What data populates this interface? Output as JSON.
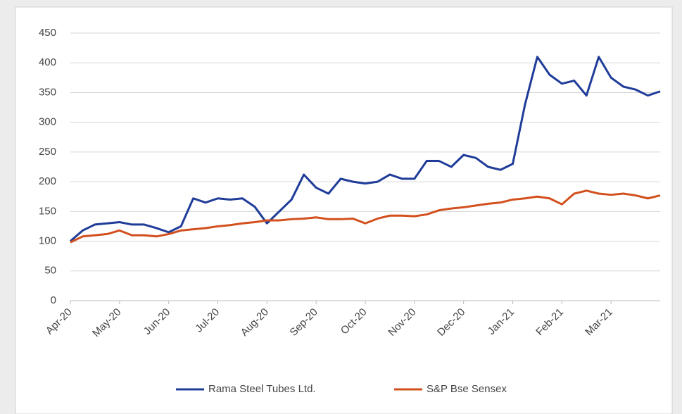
{
  "chart_data": {
    "type": "line",
    "categories": [
      "Apr-20",
      null,
      null,
      null,
      "May-20",
      null,
      null,
      null,
      "Jun-20",
      null,
      null,
      null,
      "Jul-20",
      null,
      null,
      null,
      "Aug-20",
      null,
      null,
      null,
      "Sep-20",
      null,
      null,
      null,
      "Oct-20",
      null,
      null,
      null,
      "Nov-20",
      null,
      null,
      null,
      "Dec-20",
      null,
      null,
      null,
      "Jan-21",
      null,
      null,
      null,
      "Feb-21",
      null,
      null,
      null,
      "Mar-21",
      null,
      null,
      null,
      null
    ],
    "series": [
      {
        "name": "Rama Steel Tubes Ltd.",
        "color": "#1f3c99",
        "values": [
          100,
          118,
          128,
          130,
          132,
          128,
          128,
          122,
          115,
          125,
          172,
          165,
          172,
          170,
          172,
          158,
          130,
          150,
          170,
          212,
          190,
          180,
          205,
          200,
          197,
          200,
          212,
          205,
          205,
          235,
          235,
          225,
          245,
          240,
          225,
          220,
          230,
          330,
          410,
          380,
          365,
          370,
          345,
          410,
          375,
          360,
          355,
          345,
          352
        ]
      },
      {
        "name": "S&P Bse Sensex",
        "color": "#d2501e",
        "values": [
          98,
          108,
          110,
          112,
          118,
          110,
          110,
          108,
          112,
          118,
          120,
          122,
          125,
          127,
          130,
          132,
          135,
          135,
          137,
          138,
          140,
          137,
          137,
          138,
          130,
          138,
          143,
          143,
          142,
          145,
          152,
          155,
          157,
          160,
          163,
          165,
          170,
          172,
          175,
          172,
          162,
          180,
          185,
          180,
          178,
          180,
          177,
          172,
          177
        ]
      }
    ],
    "ylim": [
      0,
      450
    ],
    "yticks": [
      0,
      50,
      100,
      150,
      200,
      250,
      300,
      350,
      400,
      450
    ],
    "grid": true,
    "legend": "bottom"
  }
}
